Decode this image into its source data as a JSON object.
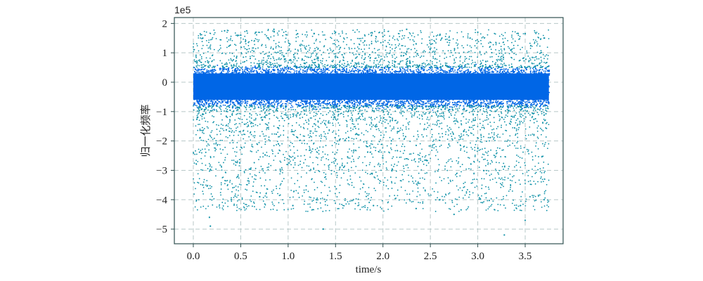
{
  "chart_data": {
    "type": "scatter",
    "title": "",
    "xlabel": "time/s",
    "ylabel": "归一化频率",
    "y_scale_label": "1e5",
    "xlim": [
      -0.2,
      3.9
    ],
    "ylim": [
      -5.5,
      2.2
    ],
    "x_ticks": [
      0.0,
      0.5,
      1.0,
      1.5,
      2.0,
      2.5,
      3.0,
      3.5
    ],
    "x_tick_labels": [
      "0.0",
      "0.5",
      "1.0",
      "1.5",
      "2.0",
      "2.5",
      "3.0",
      "3.5"
    ],
    "y_ticks": [
      2,
      1,
      0,
      -1,
      -2,
      -3,
      -4,
      -5
    ],
    "y_tick_labels": [
      "2",
      "1",
      "0",
      "−1",
      "−2",
      "−3",
      "−4",
      "−5"
    ],
    "grid": true,
    "grid_style": "dashed",
    "x_data_range": [
      0.0,
      3.75
    ],
    "dense_band": [
      -0.8,
      0.5
    ],
    "series": [
      {
        "points": [
          [
            0.1,
            1.5
          ],
          [
            0.33,
            1.75
          ],
          [
            0.5,
            1.6
          ],
          [
            0.85,
            1.8
          ],
          [
            1.1,
            1.65
          ],
          [
            1.5,
            1.7
          ],
          [
            2.0,
            1.55
          ],
          [
            2.25,
            1.8
          ],
          [
            2.6,
            1.6
          ],
          [
            3.0,
            1.7
          ],
          [
            3.5,
            1.65
          ],
          [
            3.7,
            1.5
          ],
          [
            0.1,
            -3.5
          ],
          [
            0.17,
            -4.6
          ],
          [
            0.18,
            -4.9
          ],
          [
            0.4,
            -4.0
          ],
          [
            0.7,
            -3.9
          ],
          [
            1.05,
            -4.2
          ],
          [
            1.3,
            -4.0
          ],
          [
            1.37,
            -5.0
          ],
          [
            1.9,
            -4.2
          ],
          [
            2.35,
            -4.3
          ],
          [
            2.6,
            -4.0
          ],
          [
            2.75,
            -4.5
          ],
          [
            3.05,
            -4.1
          ],
          [
            3.28,
            -5.2
          ],
          [
            3.45,
            -4.2
          ],
          [
            3.5,
            -4.7
          ],
          [
            3.7,
            -4.0
          ]
        ]
      }
    ],
    "colors": {
      "core_points": "#0066e6",
      "outlier_points": "#0a8fa6",
      "grid": "#b8c8c8",
      "axes": "#2f4f4f"
    }
  }
}
